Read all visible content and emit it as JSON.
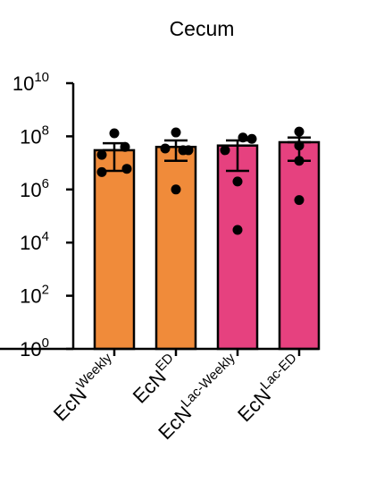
{
  "chart_data": {
    "type": "bar",
    "title": "Cecum",
    "xlabel": "",
    "ylabel": "",
    "y_scale": "log10",
    "ylim": [
      1,
      10000000000
    ],
    "y_ticks": [
      {
        "base": "10",
        "exp": "0"
      },
      {
        "base": "10",
        "exp": "2"
      },
      {
        "base": "10",
        "exp": "4"
      },
      {
        "base": "10",
        "exp": "6"
      },
      {
        "base": "10",
        "exp": "8"
      },
      {
        "base": "10",
        "exp": "10"
      }
    ],
    "categories": [
      {
        "main": "EcN",
        "sup": "Weekly"
      },
      {
        "main": "EcN",
        "sup": "ED"
      },
      {
        "main": "EcN",
        "sup": "Lac-Weekly"
      },
      {
        "main": "EcN",
        "sup": "Lac-ED"
      }
    ],
    "values": [
      30000000,
      40000000,
      45000000,
      60000000
    ],
    "error_upper": [
      55000000,
      70000000,
      70000000,
      90000000
    ],
    "error_lower": [
      5000000,
      12000000,
      5000000,
      12000000
    ],
    "bar_colors": [
      "#f08b3a",
      "#f08b3a",
      "#e6417f",
      "#e6417f"
    ],
    "points": [
      [
        130000000,
        40000000,
        20000000,
        6000000,
        4500000
      ],
      [
        140000000,
        30000000,
        35000000,
        30000000,
        1000000
      ],
      [
        90000000,
        80000000,
        30000000,
        2000000,
        30000
      ],
      [
        150000000,
        45000000,
        12000000,
        400000
      ]
    ],
    "grid": false,
    "legend": "none"
  }
}
